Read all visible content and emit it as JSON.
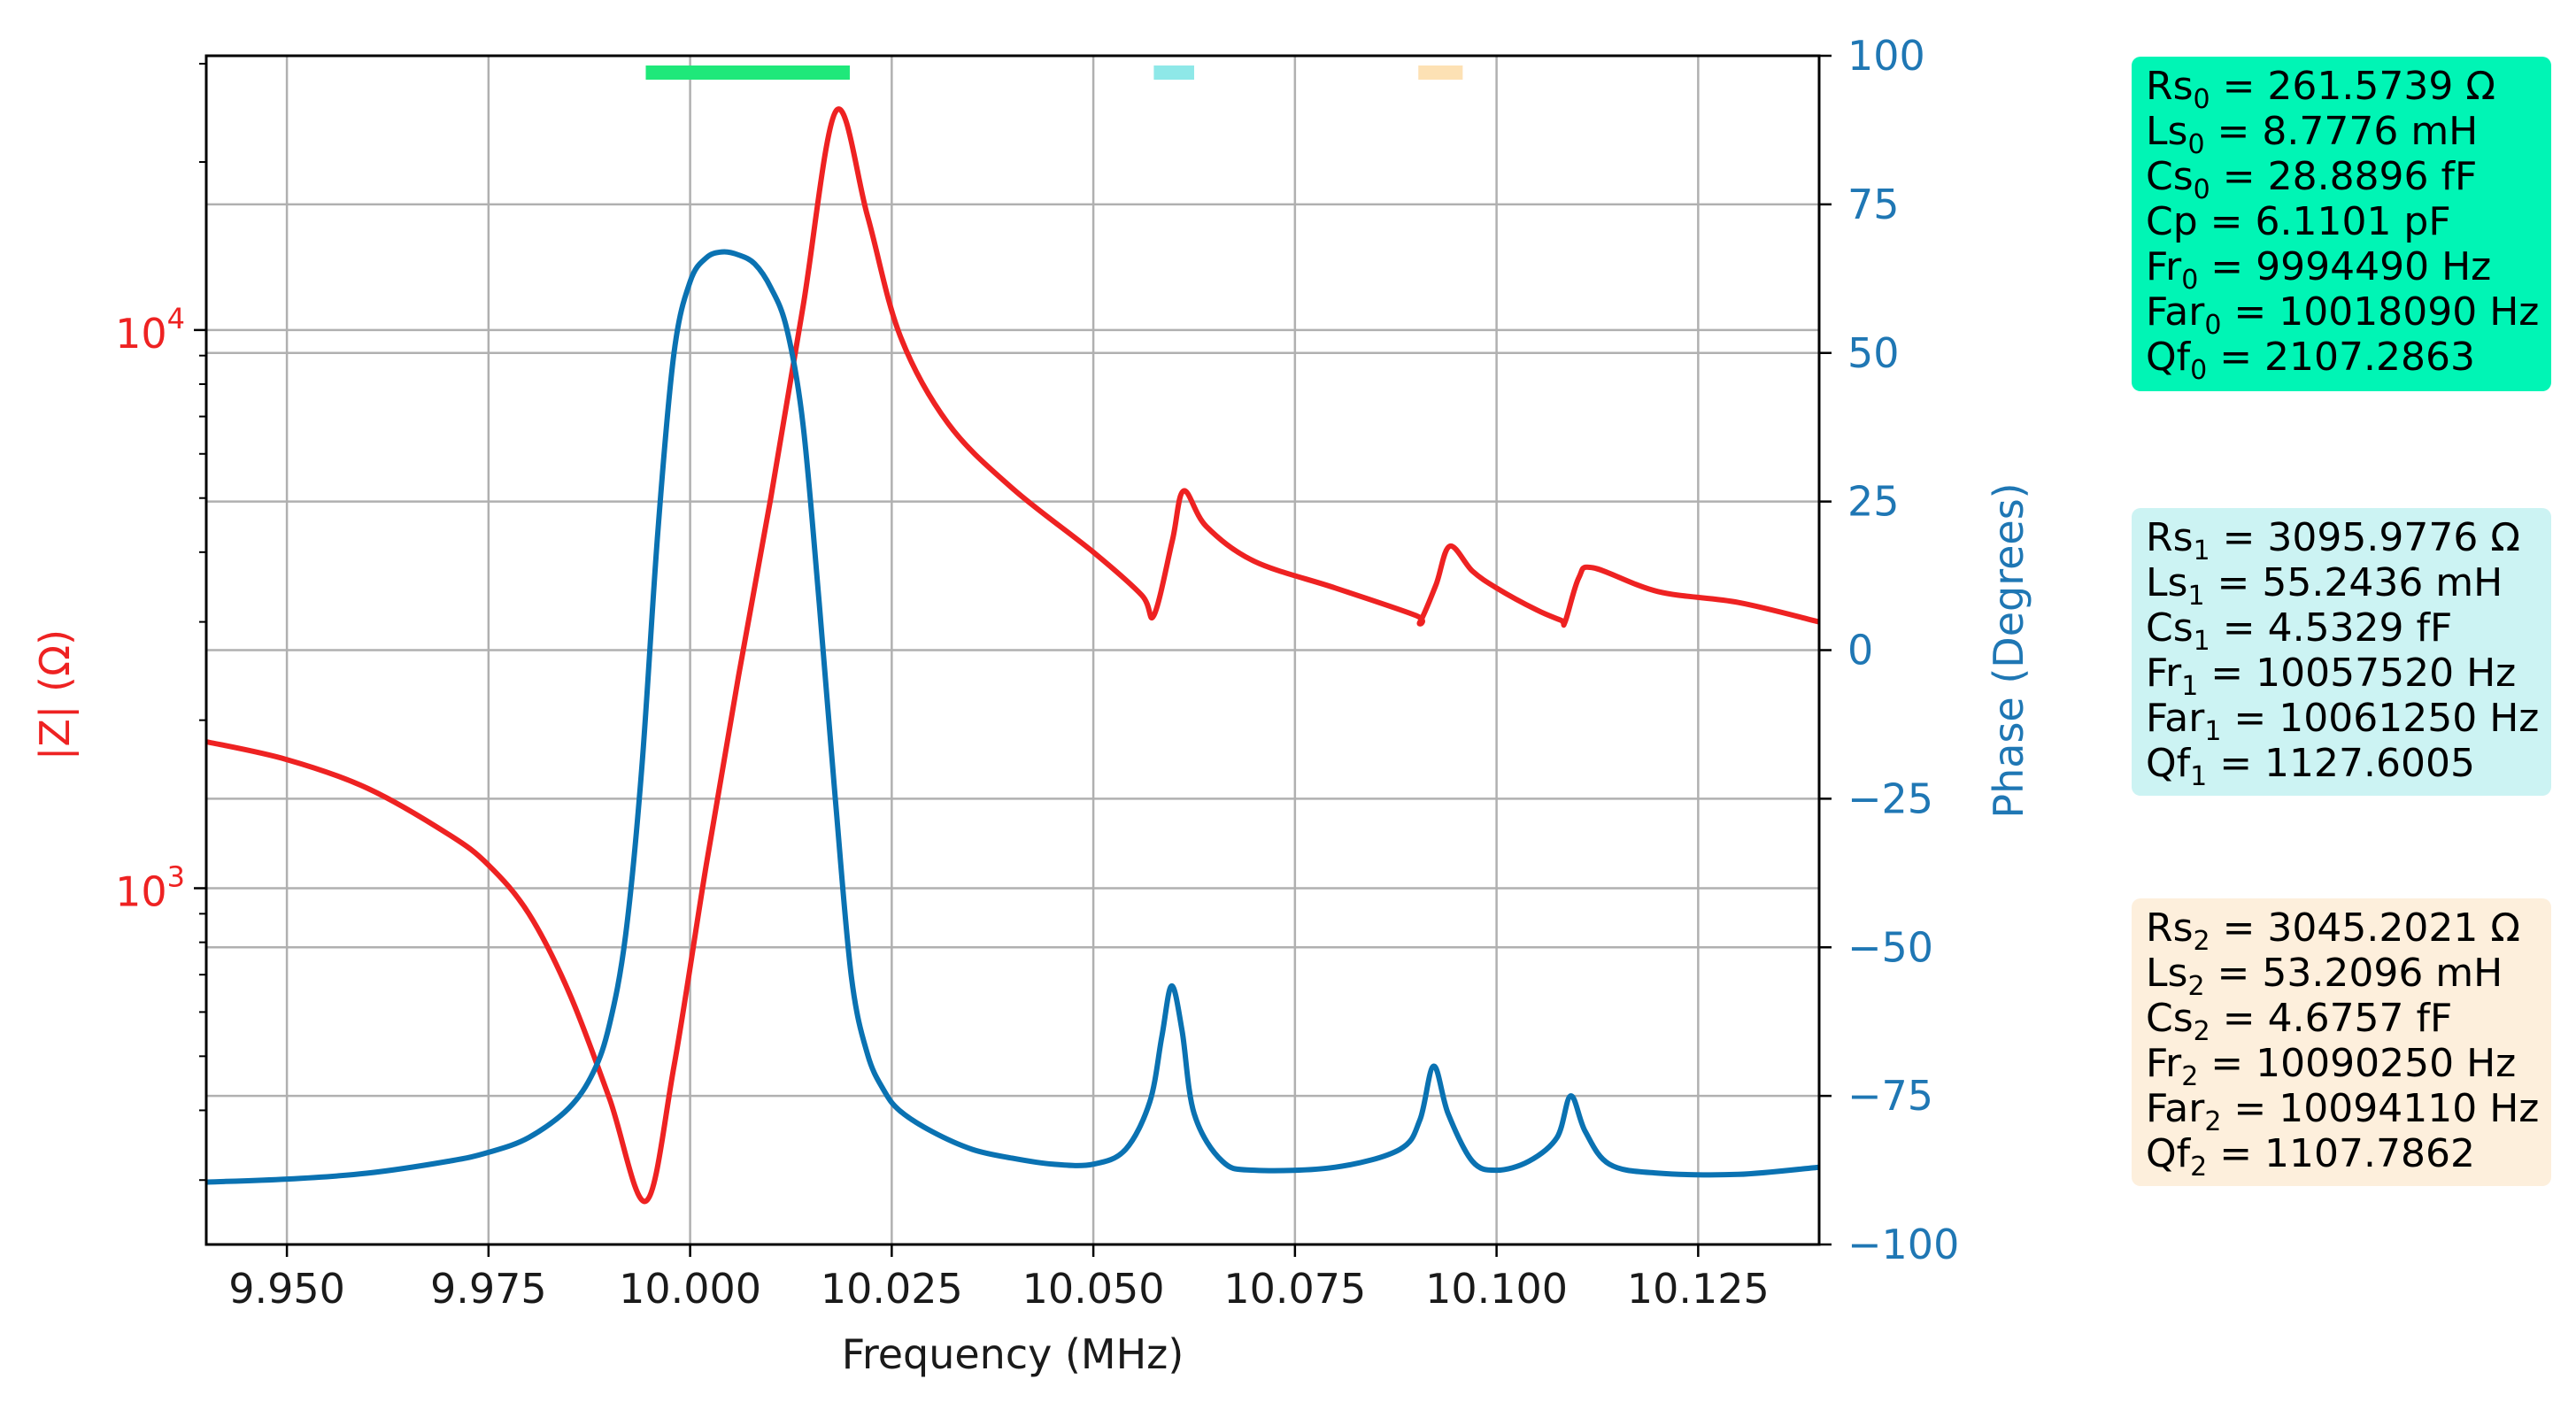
{
  "chart_data": {
    "type": "line",
    "xlabel": "Frequency (MHz)",
    "ylabel_left": "|Z| (Ω)",
    "ylabel_right": "Phase (Degrees)",
    "xlim": [
      9.94,
      10.14
    ],
    "ylim_left_log": [
      230,
      31000
    ],
    "ylim_right": [
      -100,
      100
    ],
    "x_ticks": [
      "9.950",
      "9.975",
      "10.000",
      "10.025",
      "10.050",
      "10.075",
      "10.100",
      "10.125"
    ],
    "x_tick_values": [
      9.95,
      9.975,
      10.0,
      10.025,
      10.05,
      10.075,
      10.1,
      10.125
    ],
    "y_left_major": [
      {
        "value": 1000,
        "base": "10",
        "exp": "3"
      },
      {
        "value": 10000,
        "base": "10",
        "exp": "4"
      }
    ],
    "y_right_ticks": [
      "100",
      "75",
      "50",
      "25",
      "0",
      "−25",
      "−50",
      "−75",
      "−100"
    ],
    "y_right_tick_values": [
      100,
      75,
      50,
      25,
      0,
      -25,
      -50,
      -75,
      -100
    ],
    "grid": true,
    "colors": {
      "impedance": "#ee2222",
      "phase": "#0a72b2",
      "left_axis": "#ee2222",
      "right_axis": "#1f77b4"
    },
    "series": [
      {
        "axis": "left",
        "color": "#ee2222",
        "x": [
          9.94,
          9.95,
          9.96,
          9.97,
          9.975,
          9.98,
          9.985,
          9.99,
          9.9945,
          9.998,
          10.002,
          10.006,
          10.01,
          10.014,
          10.0181,
          10.022,
          10.026,
          10.032,
          10.04,
          10.05,
          10.056,
          10.0575,
          10.0598,
          10.0612,
          10.064,
          10.07,
          10.08,
          10.09,
          10.0905,
          10.0925,
          10.0942,
          10.097,
          10.1,
          10.105,
          10.108,
          10.1085,
          10.1102,
          10.112,
          10.12,
          10.13,
          10.14
        ],
        "values": [
          1830,
          1700,
          1510,
          1250,
          1100,
          900,
          650,
          420,
          275,
          480,
          1100,
          2400,
          5000,
          11000,
          24700,
          16000,
          9800,
          6800,
          5200,
          4000,
          3350,
          3080,
          4200,
          5150,
          4450,
          3850,
          3450,
          3080,
          3000,
          3500,
          4100,
          3700,
          3450,
          3150,
          3020,
          3000,
          3600,
          3750,
          3400,
          3250,
          3000
        ]
      },
      {
        "axis": "right",
        "color": "#0a72b2",
        "x": [
          9.94,
          9.95,
          9.96,
          9.97,
          9.975,
          9.98,
          9.985,
          9.988,
          9.99,
          9.992,
          9.994,
          9.996,
          9.998,
          10.0,
          10.002,
          10.004,
          10.006,
          10.008,
          10.01,
          10.012,
          10.014,
          10.016,
          10.018,
          10.02,
          10.022,
          10.024,
          10.026,
          10.03,
          10.035,
          10.04,
          10.045,
          10.05,
          10.054,
          10.057,
          10.0585,
          10.0597,
          10.061,
          10.0625,
          10.066,
          10.07,
          10.08,
          10.088,
          10.0905,
          10.0922,
          10.094,
          10.097,
          10.1,
          10.104,
          10.1075,
          10.1092,
          10.111,
          10.114,
          10.12,
          10.13,
          10.14
        ],
        "values": [
          -89.5,
          -89,
          -88,
          -86,
          -84.5,
          -82,
          -77,
          -71,
          -63,
          -48,
          -20,
          20,
          50,
          62,
          66,
          67,
          66.5,
          65,
          61,
          54,
          38,
          8,
          -25,
          -55,
          -68,
          -74,
          -77.5,
          -81,
          -84,
          -85.5,
          -86.5,
          -86.5,
          -84,
          -76,
          -65,
          -56.5,
          -64,
          -78,
          -86,
          -87.5,
          -87,
          -84,
          -79,
          -70,
          -78,
          -86,
          -87.5,
          -86,
          -82,
          -75,
          -81,
          -86.5,
          -88,
          -88.2,
          -87
        ]
      }
    ],
    "bars": [
      {
        "x0": 9.9945,
        "x1": 10.0198,
        "color": "#1fe87a"
      },
      {
        "x0": 10.0575,
        "x1": 10.0625,
        "color": "#8ee8e8"
      },
      {
        "x0": 10.0903,
        "x1": 10.0958,
        "color": "#fde1b4"
      }
    ]
  },
  "boxes": [
    {
      "bg": "#00f5b5",
      "lines": [
        {
          "pre": "Rs",
          "sub": "0",
          "post": " = 261.5739 Ω"
        },
        {
          "pre": "Ls",
          "sub": "0",
          "post": " = 8.7776 mH"
        },
        {
          "pre": "Cs",
          "sub": "0",
          "post": " = 28.8896 fF"
        },
        {
          "pre": "Cp = 6.1101 pF",
          "sub": "",
          "post": ""
        },
        {
          "pre": "Fr",
          "sub": "0",
          "post": " = 9994490 Hz"
        },
        {
          "pre": "Far",
          "sub": "0",
          "post": " = 10018090 Hz"
        },
        {
          "pre": "Qf",
          "sub": "0",
          "post": " = 2107.2863"
        }
      ]
    },
    {
      "bg": "#ccf3f3",
      "lines": [
        {
          "pre": "Rs",
          "sub": "1",
          "post": " = 3095.9776 Ω"
        },
        {
          "pre": "Ls",
          "sub": "1",
          "post": " = 55.2436 mH"
        },
        {
          "pre": "Cs",
          "sub": "1",
          "post": " = 4.5329 fF"
        },
        {
          "pre": "Fr",
          "sub": "1",
          "post": " = 10057520 Hz"
        },
        {
          "pre": "Far",
          "sub": "1",
          "post": " = 10061250 Hz"
        },
        {
          "pre": "Qf",
          "sub": "1",
          "post": " = 1127.6005"
        }
      ]
    },
    {
      "bg": "#fdefdc",
      "lines": [
        {
          "pre": "Rs",
          "sub": "2",
          "post": " = 3045.2021 Ω"
        },
        {
          "pre": "Ls",
          "sub": "2",
          "post": " = 53.2096 mH"
        },
        {
          "pre": "Cs",
          "sub": "2",
          "post": " = 4.6757 fF"
        },
        {
          "pre": "Fr",
          "sub": "2",
          "post": " = 10090250 Hz"
        },
        {
          "pre": "Far",
          "sub": "2",
          "post": " = 10094110 Hz"
        },
        {
          "pre": "Qf",
          "sub": "2",
          "post": " = 1107.7862"
        }
      ]
    }
  ]
}
